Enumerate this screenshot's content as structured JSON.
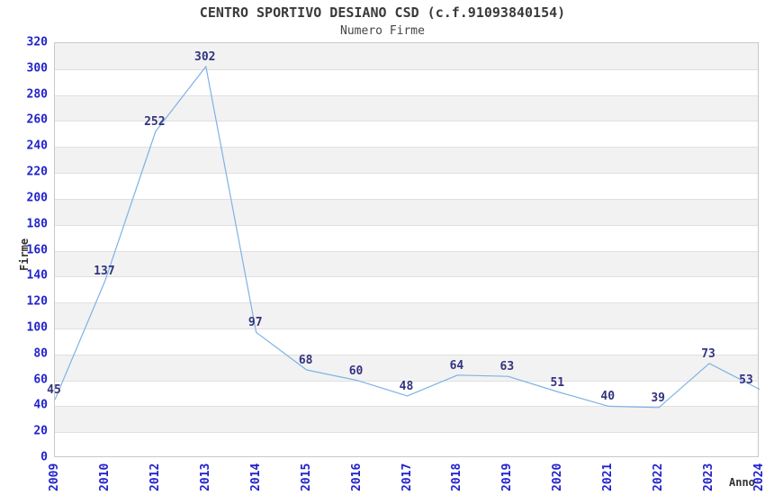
{
  "chart_data": {
    "type": "line",
    "title": "CENTRO SPORTIVO DESIANO CSD (c.f.91093840154)",
    "subtitle": "Numero Firme",
    "xlabel": "Anno",
    "ylabel": "Firme",
    "categories": [
      "2009",
      "2010",
      "2012",
      "2013",
      "2014",
      "2015",
      "2016",
      "2017",
      "2018",
      "2019",
      "2020",
      "2021",
      "2022",
      "2023",
      "2024"
    ],
    "values": [
      45,
      137,
      252,
      302,
      97,
      68,
      60,
      48,
      64,
      63,
      51,
      40,
      39,
      73,
      53
    ],
    "ylim": [
      0,
      320
    ],
    "ytick_step": 20,
    "grid": "horizontal",
    "band_fill": "alternating-gray-white",
    "legend": "none",
    "point_labels_visible": true,
    "colors": {
      "line": "#7EB2E5",
      "point_label": "#333380",
      "tick_label": "#2222CC",
      "title": "#3A3A3A",
      "subtitle": "#464646",
      "axis_title": "#333333",
      "band": "#F2F2F2",
      "grid": "#E0E0E0",
      "plot_border": "#C8C8C8",
      "background": "#FFFFFF"
    }
  }
}
